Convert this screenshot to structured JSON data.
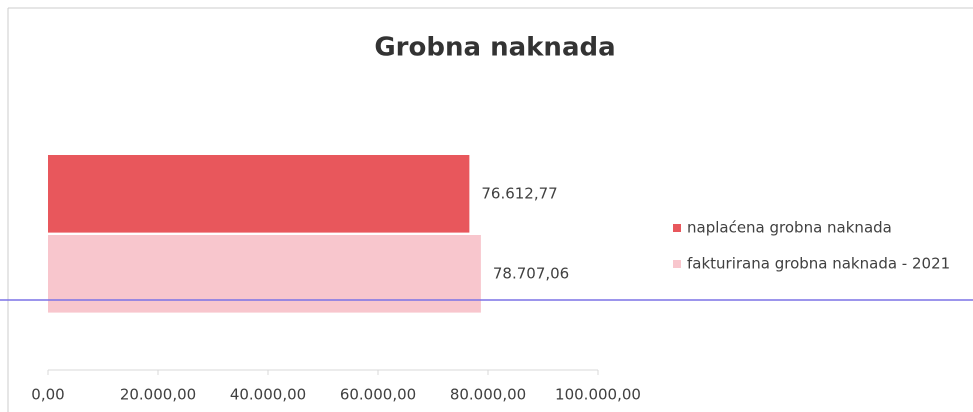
{
  "chart_data": {
    "type": "bar",
    "orientation": "horizontal",
    "title": "Grobna naknada",
    "categories": [
      null
    ],
    "series": [
      {
        "name": "naplaćena grobna naknada",
        "color": "#e8575c",
        "values": [
          76612.77
        ],
        "value_labels": [
          "76.612,77"
        ]
      },
      {
        "name": "fakturirana grobna naknada - 2021",
        "color": "#f8c6cd",
        "values": [
          78707.06
        ],
        "value_labels": [
          "78.707,06"
        ]
      }
    ],
    "xlim": [
      0,
      100000
    ],
    "xticks": [
      {
        "value": 0,
        "label": "0,00"
      },
      {
        "value": 20000,
        "label": "20.000,00"
      },
      {
        "value": 40000,
        "label": "40.000,00"
      },
      {
        "value": 60000,
        "label": "60.000,00"
      },
      {
        "value": 80000,
        "label": "80.000,00"
      },
      {
        "value": 100000,
        "label": "100.000,00"
      }
    ],
    "grid": false,
    "legend": "right"
  }
}
